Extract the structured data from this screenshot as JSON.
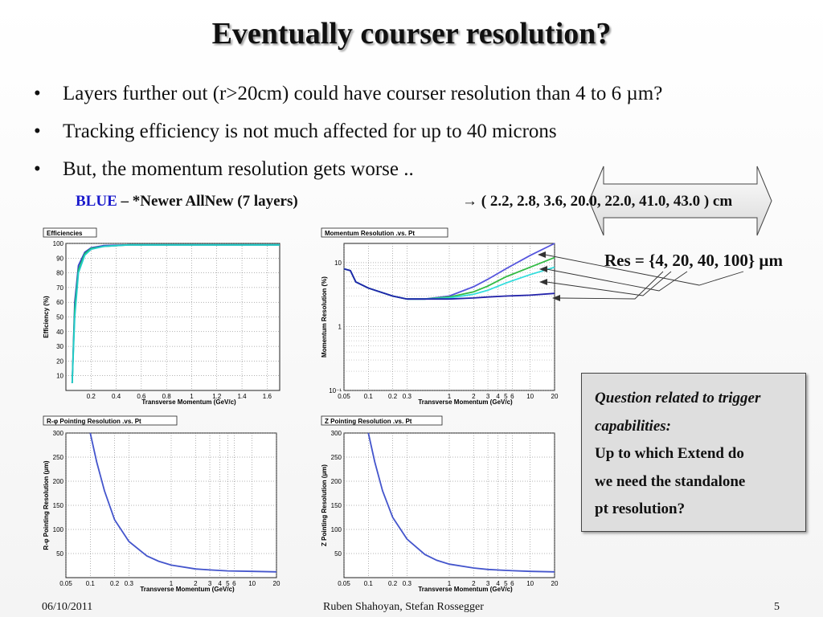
{
  "slide": {
    "title": "Eventually courser resolution?",
    "bullets": [
      "Layers further out (r>20cm) could have courser resolution than 4 to 6 µm?",
      "Tracking efficiency is not much affected for up to 40 microns",
      "But, the momentum resolution gets worse .."
    ],
    "bullet_symbol": "•",
    "blue_word": "BLUE",
    "blue_rest": " – *Newer AllNew (7 layers)",
    "radii_prefix": "→ ( 2.2, 2.8, 3.6, ",
    "radii_outer": "20.0, 22.0,  41.0, 43.0",
    "radii_suffix": " ) cm",
    "res_label": "Res = {4, 20, 40, 100} µm",
    "panel": {
      "question_line1": "Question related to trigger",
      "question_line2": "capabilities:",
      "body_line1": "Up to which Extend do",
      "body_line2": "we need the standalone",
      "body_line3": "pt resolution?"
    },
    "footer": {
      "date": "06/10/2011",
      "authors": "Ruben Shahoyan, Stefan Rossegger",
      "page": "5"
    }
  },
  "chart_data": [
    {
      "type": "line",
      "title": "Efficiencies",
      "xlabel": "Transverse Momentum (GeV/c)",
      "ylabel": "Efficiency (%)",
      "xlim": [
        0,
        1.7
      ],
      "ylim": [
        0,
        100
      ],
      "xticks": [
        "0.2",
        "0.4",
        "0.6",
        "0.8",
        "1",
        "1.2",
        "1.4",
        "1.6"
      ],
      "yticks": [
        "10",
        "20",
        "30",
        "40",
        "50",
        "60",
        "70",
        "80",
        "90",
        "100"
      ],
      "grid": true,
      "series": [
        {
          "color": "#3344cc",
          "x": [
            0.05,
            0.07,
            0.1,
            0.15,
            0.2,
            0.3,
            0.5,
            0.8,
            1.2,
            1.7
          ],
          "y": [
            5,
            60,
            85,
            94,
            97,
            98.5,
            99,
            99,
            99,
            99
          ]
        },
        {
          "color": "#22bb55",
          "x": [
            0.05,
            0.07,
            0.1,
            0.15,
            0.2,
            0.3,
            0.5,
            0.8,
            1.2,
            1.7
          ],
          "y": [
            5,
            55,
            82,
            93,
            96.5,
            98,
            99,
            99,
            99,
            99
          ]
        },
        {
          "color": "#22cccc",
          "x": [
            0.05,
            0.07,
            0.1,
            0.15,
            0.2,
            0.3,
            0.5,
            0.8,
            1.2,
            1.7
          ],
          "y": [
            5,
            50,
            80,
            92,
            96,
            98,
            99,
            99,
            99,
            99
          ]
        }
      ]
    },
    {
      "type": "line",
      "title": "Momentum Resolution .vs. Pt",
      "xlabel": "Transverse Momentum (GeV/c)",
      "ylabel": "Momentum Resolution (%)",
      "xscale": "log",
      "yscale": "log",
      "xlim": [
        0.05,
        20
      ],
      "ylim": [
        0.1,
        20
      ],
      "xticks": [
        "0.05",
        "0.1",
        "0.2",
        "0.3",
        "1",
        "2",
        "3",
        "4",
        "5",
        "6",
        "10",
        "20"
      ],
      "yticks": [
        "10⁻¹",
        "1",
        "10"
      ],
      "grid": true,
      "series": [
        {
          "color": "#5555dd",
          "x": [
            0.05,
            0.06,
            0.07,
            0.1,
            0.2,
            0.3,
            0.5,
            1,
            2,
            3,
            5,
            10,
            20
          ],
          "y": [
            8,
            7.5,
            5,
            4,
            3,
            2.7,
            2.7,
            3,
            4.2,
            5.5,
            8,
            13,
            20
          ]
        },
        {
          "color": "#33bb44",
          "x": [
            0.05,
            0.06,
            0.07,
            0.1,
            0.2,
            0.3,
            0.5,
            1,
            2,
            3,
            5,
            10,
            20
          ],
          "y": [
            8,
            7.5,
            5,
            4,
            3,
            2.7,
            2.7,
            2.9,
            3.5,
            4.3,
            6,
            8.5,
            12
          ]
        },
        {
          "color": "#33dddd",
          "x": [
            0.05,
            0.06,
            0.07,
            0.1,
            0.2,
            0.3,
            0.5,
            1,
            2,
            3,
            5,
            10,
            20
          ],
          "y": [
            8,
            7.5,
            5,
            4,
            3,
            2.7,
            2.7,
            2.8,
            3.2,
            3.7,
            4.8,
            6.5,
            8.5
          ]
        },
        {
          "color": "#2222aa",
          "x": [
            0.05,
            0.06,
            0.07,
            0.1,
            0.2,
            0.3,
            0.5,
            1,
            2,
            3,
            5,
            10,
            20
          ],
          "y": [
            8,
            7.5,
            5,
            4,
            3,
            2.7,
            2.7,
            2.7,
            2.8,
            2.9,
            3,
            3.1,
            3.3
          ]
        }
      ]
    },
    {
      "type": "line",
      "title": "R-φ Pointing Resolution .vs. Pt",
      "xlabel": "Transverse Momentum (GeV/c)",
      "ylabel": "R-φ Pointing Resolution (µm)",
      "xscale": "log",
      "xlim": [
        0.05,
        20
      ],
      "ylim": [
        0,
        300
      ],
      "xticks": [
        "0.05",
        "0.1",
        "0.2",
        "0.3",
        "1",
        "2",
        "3",
        "4",
        "5",
        "6",
        "10",
        "20"
      ],
      "yticks": [
        "50",
        "100",
        "150",
        "200",
        "250",
        "300"
      ],
      "grid": true,
      "series": [
        {
          "color": "#4455cc",
          "x": [
            0.1,
            0.12,
            0.15,
            0.2,
            0.3,
            0.5,
            0.7,
            1,
            2,
            3,
            5,
            10,
            20
          ],
          "y": [
            300,
            240,
            180,
            120,
            75,
            45,
            34,
            26,
            18,
            16,
            14,
            13,
            12
          ]
        }
      ]
    },
    {
      "type": "line",
      "title": "Z Pointing Resolution .vs. Pt",
      "xlabel": "Transverse Momentum (GeV/c)",
      "ylabel": "Z Pointing Resolution (µm)",
      "xscale": "log",
      "xlim": [
        0.05,
        20
      ],
      "ylim": [
        0,
        300
      ],
      "xticks": [
        "0.05",
        "0.1",
        "0.2",
        "0.3",
        "1",
        "2",
        "3",
        "4",
        "5",
        "6",
        "10",
        "20"
      ],
      "yticks": [
        "50",
        "100",
        "150",
        "200",
        "250",
        "300"
      ],
      "grid": true,
      "series": [
        {
          "color": "#4455cc",
          "x": [
            0.1,
            0.12,
            0.15,
            0.2,
            0.3,
            0.5,
            0.7,
            1,
            2,
            3,
            5,
            10,
            20
          ],
          "y": [
            300,
            240,
            180,
            125,
            80,
            48,
            36,
            28,
            20,
            17,
            15,
            13,
            12
          ]
        }
      ]
    }
  ]
}
